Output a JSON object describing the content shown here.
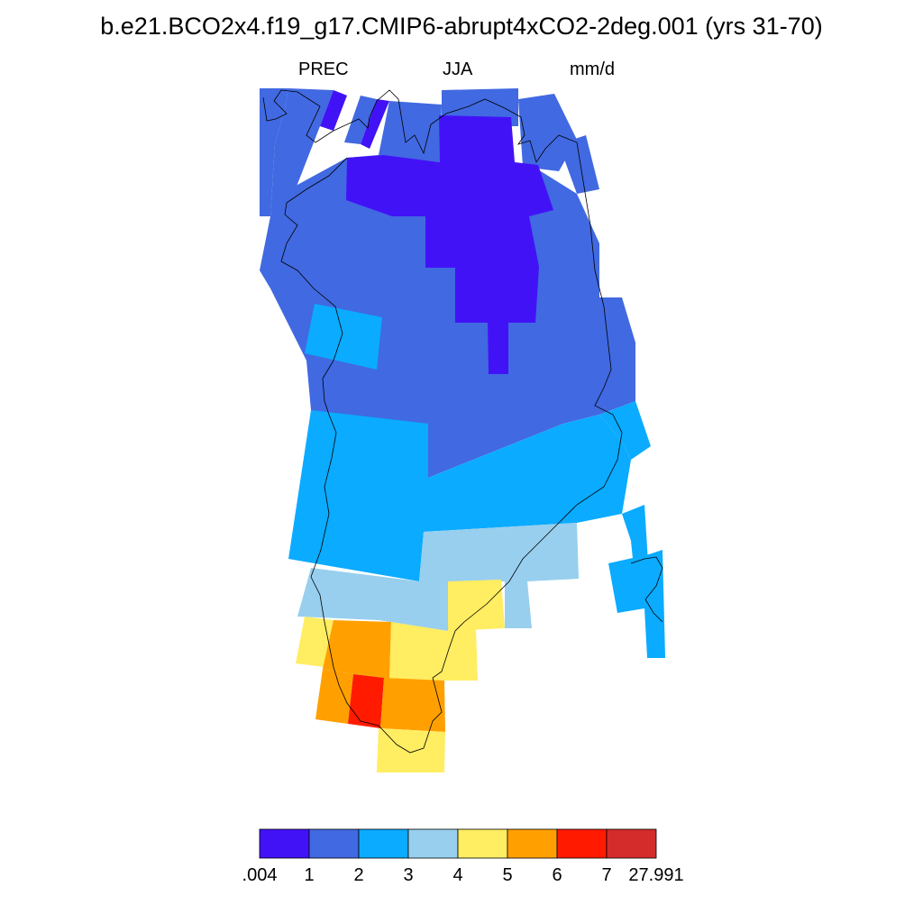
{
  "title": "b.e21.BCO2x4.f19_g17.CMIP6-abrupt4xCO2-2deg.001 (yrs 31-70)",
  "subtitle": {
    "variable": "PREC",
    "season": "JJA",
    "units": "mm/d"
  },
  "colorbar": {
    "labels": [
      ".004",
      "1",
      "2",
      "3",
      "4",
      "5",
      "6",
      "7",
      "27.991"
    ],
    "colors": [
      "#4212F7",
      "#4169E1",
      "#0BABFF",
      "#98CFEE",
      "#FFED62",
      "#FFA000",
      "#FF1A00",
      "#D42B2B"
    ]
  },
  "colors": {
    "c1": "#4212F7",
    "c2": "#4169E1",
    "c3": "#0BABFF",
    "c4": "#98CFEE",
    "c5": "#FFED62",
    "c6": "#FFA000",
    "c7": "#FF1A00"
  }
}
